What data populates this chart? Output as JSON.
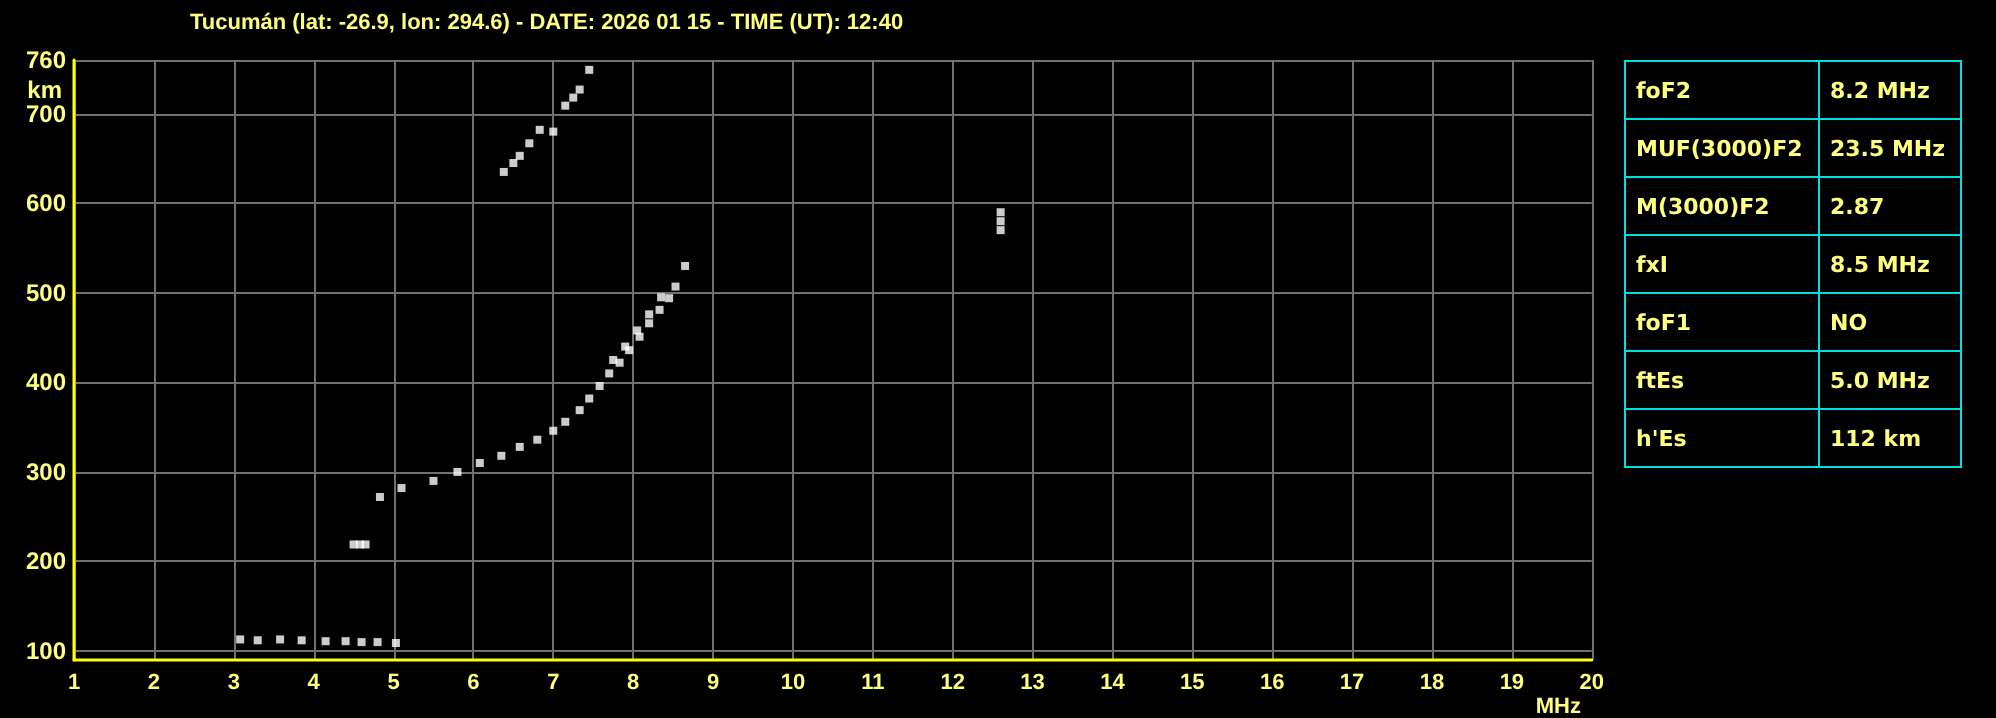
{
  "chart_data": [
    {
      "type": "scatter",
      "title": "Tucumán (lat: -26.9, lon: 294.6) - DATE: 2026 01 15 - TIME (UT): 12:40",
      "xlabel": "MHz",
      "ylabel": "km",
      "marker": "square",
      "grid": true,
      "xlim": [
        1,
        20
      ],
      "xticks": [
        1,
        2,
        3,
        4,
        5,
        6,
        7,
        8,
        9,
        10,
        11,
        12,
        13,
        14,
        15,
        16,
        17,
        18,
        19,
        20
      ],
      "ylim": [
        90,
        760
      ],
      "yticks": [
        100,
        200,
        300,
        400,
        500,
        600,
        700,
        760
      ],
      "series": [
        {
          "color": "#ffffff",
          "x": [
            4.83,
            5.1,
            5.5,
            5.8,
            6.08,
            6.35,
            6.58,
            6.8,
            7.0,
            7.15,
            7.33,
            7.45,
            7.58,
            7.7,
            7.83,
            7.95,
            8.08,
            8.2,
            8.33,
            8.45,
            8.53,
            8.65
          ],
          "values": [
            272,
            282,
            290,
            300,
            310,
            318,
            328,
            336,
            346,
            356,
            369,
            382,
            396,
            410,
            422,
            436,
            451,
            466,
            481,
            494,
            507,
            530
          ]
        },
        {
          "color": "#ffffff",
          "x": [
            7.75,
            7.9,
            8.05,
            8.2,
            8.35
          ],
          "values": [
            425,
            440,
            458,
            476,
            495
          ]
        },
        {
          "color": "#ffffff",
          "x": [
            6.38,
            6.5,
            6.58,
            6.7,
            6.83,
            7.0,
            7.15,
            7.25,
            7.33,
            7.45
          ],
          "values": [
            635,
            645,
            653,
            667,
            682,
            680,
            709,
            718,
            727,
            749
          ]
        },
        {
          "color": "#ffffff",
          "x": [
            3.08,
            3.3,
            3.58,
            3.85,
            4.15,
            4.4,
            4.6,
            4.8,
            5.03
          ],
          "values": [
            113,
            112,
            113,
            112,
            111,
            111,
            110,
            110,
            109
          ]
        },
        {
          "color": "#ffffff",
          "x": [
            4.5,
            4.58,
            4.65
          ],
          "values": [
            219,
            219,
            219
          ]
        },
        {
          "color": "#ffffff",
          "x": [
            12.6,
            12.6,
            12.6
          ],
          "values": [
            570,
            580,
            590
          ]
        }
      ]
    },
    {
      "type": "other",
      "annotations": [
        "foF2",
        "8.2 MHz",
        "MUF(3000)F2",
        "23.5 MHz",
        "M(3000)F2",
        "2.87",
        "fxI",
        "8.5 MHz",
        "foF1",
        "NO",
        "ftEs",
        "5.0 MHz",
        "h'Es",
        "112 km"
      ]
    }
  ]
}
